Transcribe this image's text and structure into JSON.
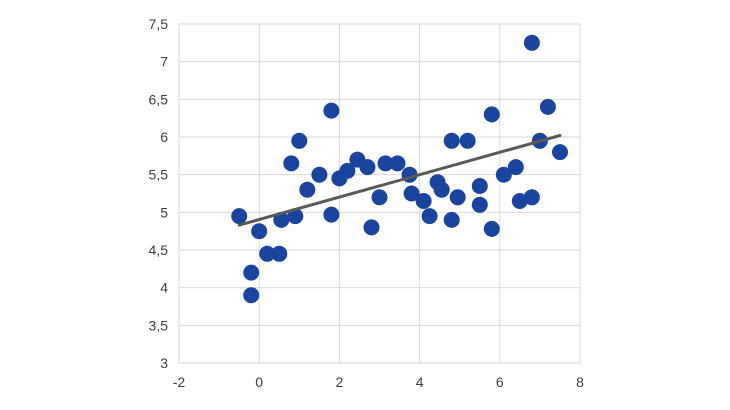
{
  "chart_data": {
    "type": "scatter",
    "title": "",
    "xlabel": "",
    "ylabel": "",
    "xlim": [
      -2,
      8
    ],
    "ylim": [
      3,
      7.5
    ],
    "x_ticks": [
      -2,
      0,
      2,
      4,
      6,
      8
    ],
    "x_tick_labels": [
      "-2",
      "0",
      "2",
      "4",
      "6",
      "8"
    ],
    "y_ticks": [
      3,
      3.5,
      4,
      4.5,
      5,
      5.5,
      6,
      6.5,
      7,
      7.5
    ],
    "y_tick_labels": [
      "3",
      "3,5",
      "4",
      "4,5",
      "5",
      "5,5",
      "6",
      "6,5",
      "7",
      "7,5"
    ],
    "grid": true,
    "legend": false,
    "colors": {
      "marker": "#1b449e",
      "trendline": "#595959",
      "gridline": "#d9d9d9",
      "plot_border": "#d9d9d9",
      "tick_text": "#3f3f3f",
      "background": "#ffffff"
    },
    "marker_radius_px": 8,
    "series": [
      {
        "name": "scatter-points",
        "points": [
          [
            -0.5,
            4.95
          ],
          [
            -0.2,
            4.2
          ],
          [
            -0.2,
            3.9
          ],
          [
            0,
            4.75
          ],
          [
            0.2,
            4.45
          ],
          [
            0.5,
            4.45
          ],
          [
            0.55,
            4.9
          ],
          [
            0.9,
            4.95
          ],
          [
            0.8,
            5.65
          ],
          [
            1.0,
            5.95
          ],
          [
            1.2,
            5.3
          ],
          [
            1.5,
            5.5
          ],
          [
            1.8,
            6.35
          ],
          [
            1.8,
            4.97
          ],
          [
            2.0,
            5.45
          ],
          [
            2.2,
            5.55
          ],
          [
            2.45,
            5.7
          ],
          [
            2.7,
            5.6
          ],
          [
            2.8,
            4.8
          ],
          [
            3.0,
            5.2
          ],
          [
            3.15,
            5.65
          ],
          [
            3.45,
            5.65
          ],
          [
            3.75,
            5.5
          ],
          [
            3.8,
            5.25
          ],
          [
            4.1,
            5.15
          ],
          [
            4.25,
            4.95
          ],
          [
            4.45,
            5.4
          ],
          [
            4.55,
            5.3
          ],
          [
            4.8,
            4.9
          ],
          [
            4.8,
            5.95
          ],
          [
            4.95,
            5.2
          ],
          [
            5.2,
            5.95
          ],
          [
            5.5,
            5.35
          ],
          [
            5.5,
            5.1
          ],
          [
            5.8,
            6.3
          ],
          [
            5.8,
            4.78
          ],
          [
            6.1,
            5.5
          ],
          [
            6.4,
            5.6
          ],
          [
            6.5,
            5.15
          ],
          [
            6.8,
            5.2
          ],
          [
            6.8,
            7.25
          ],
          [
            7.0,
            5.95
          ],
          [
            7.2,
            6.4
          ],
          [
            7.5,
            5.8
          ]
        ]
      }
    ],
    "trendline": {
      "x_start": -0.5,
      "y_start": 4.83,
      "x_end": 7.5,
      "y_end": 6.02,
      "stroke_width_px": 3
    }
  }
}
